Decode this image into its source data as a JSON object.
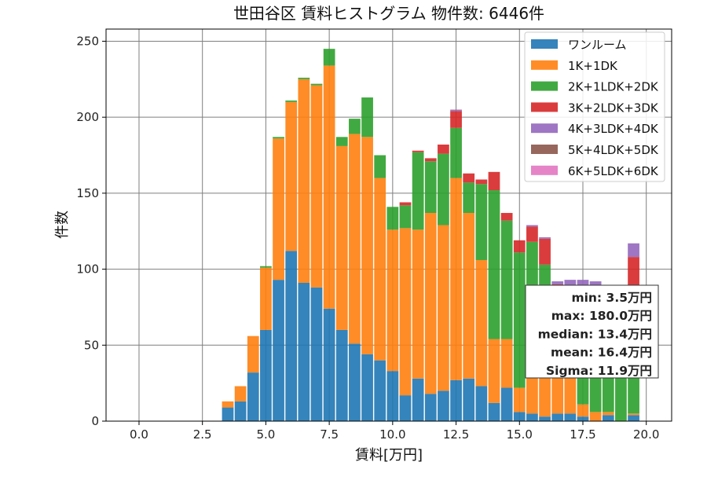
{
  "chart_data": {
    "type": "bar",
    "title": "世田谷区 賃料ヒストグラム  物件数: 6446件",
    "xlabel": "賃料[万円]",
    "ylabel": "件数",
    "xlim": [
      -1.3,
      21.0
    ],
    "ylim": [
      0,
      258
    ],
    "xticks": [
      "0.0",
      "2.5",
      "5.0",
      "7.5",
      "10.0",
      "12.5",
      "15.0",
      "17.5",
      "20.0"
    ],
    "xtick_values": [
      0,
      2.5,
      5,
      7.5,
      10,
      12.5,
      15,
      17.5,
      20
    ],
    "yticks": [
      "0",
      "50",
      "100",
      "150",
      "200",
      "250"
    ],
    "ytick_values": [
      0,
      50,
      100,
      150,
      200,
      250
    ],
    "grid": true,
    "legend_position": "top-right",
    "bin_width": 0.5,
    "bin_starts": [
      3.25,
      3.75,
      4.25,
      4.75,
      5.25,
      5.75,
      6.25,
      6.75,
      7.25,
      7.75,
      8.25,
      8.75,
      9.25,
      9.75,
      10.25,
      10.75,
      11.25,
      11.75,
      12.25,
      12.75,
      13.25,
      13.75,
      14.25,
      14.75,
      15.25,
      15.75,
      16.25,
      16.75,
      17.25,
      17.75,
      18.25,
      18.75,
      19.25
    ],
    "series": [
      {
        "name": "ワンルーム",
        "color": "#1f77b4",
        "values": [
          9,
          13,
          32,
          60,
          93,
          112,
          91,
          88,
          74,
          60,
          51,
          44,
          40,
          33,
          17,
          28,
          18,
          20,
          27,
          28,
          23,
          12,
          22,
          6,
          5,
          3,
          5,
          5,
          3,
          0,
          4,
          0,
          4
        ]
      },
      {
        "name": "1K+1DK",
        "color": "#ff7f0e",
        "values": [
          4,
          10,
          24,
          41,
          93,
          98,
          134,
          133,
          160,
          121,
          138,
          143,
          120,
          93,
          110,
          98,
          119,
          109,
          133,
          109,
          83,
          42,
          32,
          16,
          27,
          37,
          30,
          25,
          8,
          6,
          2,
          0,
          1
        ]
      },
      {
        "name": "2K+1LDK+2DK",
        "color": "#2ca02c",
        "values": [
          0,
          0,
          0,
          1,
          1,
          1,
          1,
          1,
          11,
          6,
          10,
          26,
          15,
          15,
          15,
          51,
          34,
          47,
          33,
          20,
          50,
          98,
          78,
          89,
          86,
          63,
          47,
          54,
          68,
          72,
          64,
          67,
          80
        ]
      },
      {
        "name": "3K+2LDK+3DK",
        "color": "#d62728",
        "values": [
          0,
          0,
          0,
          0,
          0,
          0,
          0,
          0,
          0,
          0,
          0,
          0,
          0,
          0,
          2,
          1,
          2,
          6,
          11,
          6,
          3,
          12,
          5,
          8,
          10,
          17,
          8,
          5,
          10,
          9,
          6,
          18,
          23
        ]
      },
      {
        "name": "4K+3LDK+4DK",
        "color": "#9467bd",
        "values": [
          0,
          0,
          0,
          0,
          0,
          0,
          0,
          0,
          0,
          0,
          0,
          0,
          0,
          0,
          0,
          0,
          0,
          0,
          1,
          0,
          0,
          0,
          0,
          0,
          1,
          1,
          2,
          4,
          4,
          5,
          0,
          2,
          9
        ]
      },
      {
        "name": "5K+4LDK+5DK",
        "color": "#8c564b",
        "values": [
          0,
          0,
          0,
          0,
          0,
          0,
          0,
          0,
          0,
          0,
          0,
          0,
          0,
          0,
          0,
          0,
          0,
          0,
          0,
          0,
          0,
          0,
          0,
          0,
          0,
          0,
          0,
          0,
          0,
          0,
          0,
          0,
          0
        ]
      },
      {
        "name": "6K+5LDK+6DK",
        "color": "#e377c2",
        "values": [
          0,
          0,
          0,
          0,
          0,
          0,
          0,
          0,
          0,
          0,
          0,
          0,
          0,
          0,
          0,
          0,
          0,
          0,
          0,
          0,
          0,
          0,
          0,
          0,
          0,
          0,
          0,
          0,
          0,
          0,
          0,
          0,
          0
        ]
      }
    ],
    "stats": [
      "min: 3.5万円",
      "max: 180.0万円",
      "median: 13.4万円",
      "mean: 16.4万円",
      "Sigma: 11.9万円"
    ]
  }
}
